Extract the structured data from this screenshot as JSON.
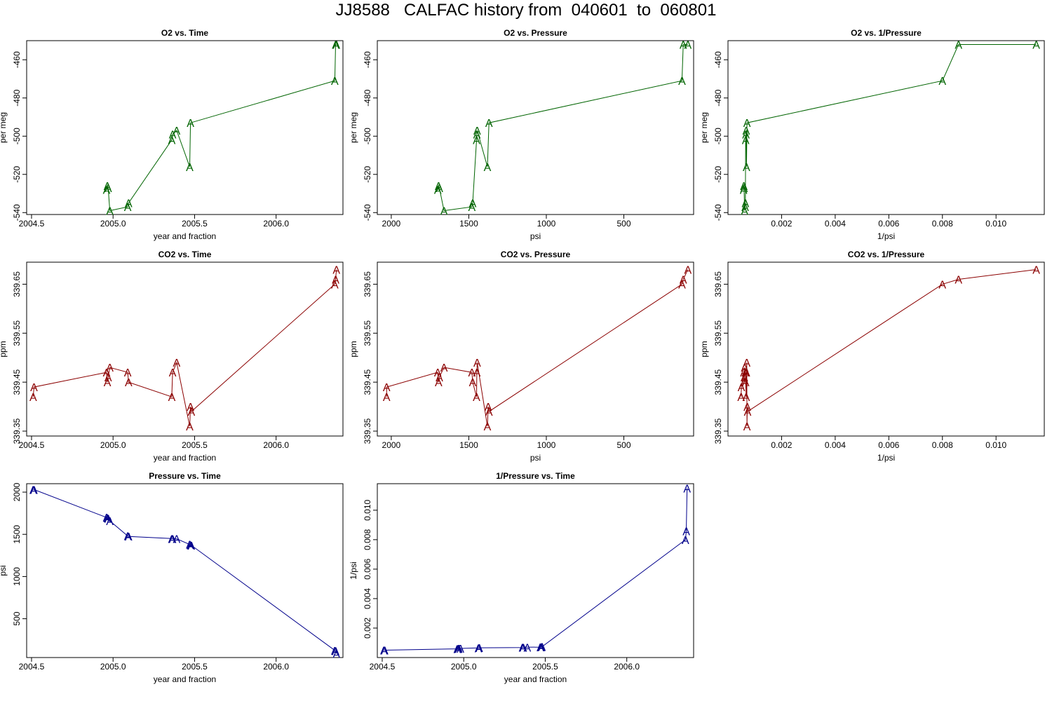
{
  "title": "JJ8588   CALFAC history from  040601  to  060801",
  "colors": {
    "o2": "#006400",
    "co2": "#8b0000",
    "pressure": "#00008b",
    "axis": "#000000"
  },
  "marker": "A",
  "chart_data": [
    {
      "id": "o2-vs-time",
      "type": "line",
      "title": "O2 vs. Time",
      "xlabel": "year and fraction",
      "ylabel": "per meg",
      "color": "o2",
      "xlim": [
        2004.47,
        2006.41
      ],
      "ylim": [
        -541,
        -450
      ],
      "xreverse": false,
      "xticks": [
        {
          "v": 2004.5,
          "t": "2004.5"
        },
        {
          "v": 2005.0,
          "t": "2005.0"
        },
        {
          "v": 2005.5,
          "t": "2005.5"
        },
        {
          "v": 2006.0,
          "t": "2006.0"
        }
      ],
      "yticks": [
        {
          "v": -460,
          "t": "-460"
        },
        {
          "v": -480,
          "t": "-480"
        },
        {
          "v": -500,
          "t": "-500"
        },
        {
          "v": -520,
          "t": "-520"
        },
        {
          "v": -540,
          "t": "-540"
        }
      ],
      "x": [
        2004.96,
        2004.965,
        2004.97,
        2004.98,
        2005.09,
        2005.095,
        2005.36,
        2005.365,
        2005.39,
        2005.47,
        2005.475,
        2006.36,
        2006.365,
        2006.37
      ],
      "y": [
        -528,
        -526,
        -527,
        -539,
        -537,
        -535,
        -502,
        -499,
        -497,
        -516,
        -493,
        -471,
        -452,
        -452
      ]
    },
    {
      "id": "o2-vs-pressure",
      "type": "line",
      "title": "O2 vs. Pressure",
      "xlabel": "psi",
      "ylabel": "per meg",
      "color": "o2",
      "xlim": [
        2090,
        50
      ],
      "ylim": [
        -541,
        -450
      ],
      "xreverse": true,
      "xticks": [
        {
          "v": 2000,
          "t": "2000"
        },
        {
          "v": 1500,
          "t": "1500"
        },
        {
          "v": 1000,
          "t": "1000"
        },
        {
          "v": 500,
          "t": "500"
        }
      ],
      "yticks": [
        {
          "v": -460,
          "t": "-460"
        },
        {
          "v": -480,
          "t": "-480"
        },
        {
          "v": -500,
          "t": "-500"
        },
        {
          "v": -520,
          "t": "-520"
        },
        {
          "v": -540,
          "t": "-540"
        }
      ],
      "x": [
        1700,
        1695,
        1690,
        1660,
        1480,
        1475,
        1450,
        1448,
        1446,
        1380,
        1370,
        125,
        117,
        87
      ],
      "y": [
        -528,
        -526,
        -527,
        -539,
        -537,
        -535,
        -502,
        -499,
        -497,
        -516,
        -493,
        -471,
        -452,
        -452
      ]
    },
    {
      "id": "o2-vs-inv-pressure",
      "type": "line",
      "title": "O2 vs. 1/Pressure",
      "xlabel": "1/psi",
      "ylabel": "per meg",
      "color": "o2",
      "xlim": [
        0,
        0.0118
      ],
      "ylim": [
        -541,
        -450
      ],
      "xreverse": false,
      "xticks": [
        {
          "v": 0.002,
          "t": "0.002"
        },
        {
          "v": 0.004,
          "t": "0.004"
        },
        {
          "v": 0.006,
          "t": "0.006"
        },
        {
          "v": 0.008,
          "t": "0.008"
        },
        {
          "v": 0.01,
          "t": "0.010"
        }
      ],
      "yticks": [
        {
          "v": -460,
          "t": "-460"
        },
        {
          "v": -480,
          "t": "-480"
        },
        {
          "v": -500,
          "t": "-500"
        },
        {
          "v": -520,
          "t": "-520"
        },
        {
          "v": -540,
          "t": "-540"
        }
      ],
      "x": [
        0.00058,
        0.00059,
        0.0006,
        0.00062,
        0.00064,
        0.00065,
        0.00066,
        0.00067,
        0.00068,
        0.00069,
        0.00071,
        0.008,
        0.0086,
        0.0115
      ],
      "y": [
        -528,
        -526,
        -527,
        -539,
        -537,
        -535,
        -502,
        -499,
        -497,
        -516,
        -493,
        -471,
        -452,
        -452
      ]
    },
    {
      "id": "co2-vs-time",
      "type": "line",
      "title": "CO2 vs. Time",
      "xlabel": "year and fraction",
      "ylabel": "ppm",
      "color": "co2",
      "xlim": [
        2004.47,
        2006.41
      ],
      "ylim": [
        339.34,
        339.695
      ],
      "xreverse": false,
      "xticks": [
        {
          "v": 2004.5,
          "t": "2004.5"
        },
        {
          "v": 2005.0,
          "t": "2005.0"
        },
        {
          "v": 2005.5,
          "t": "2005.5"
        },
        {
          "v": 2006.0,
          "t": "2006.0"
        }
      ],
      "yticks": [
        {
          "v": 339.35,
          "t": "339.35"
        },
        {
          "v": 339.45,
          "t": "339.45"
        },
        {
          "v": 339.55,
          "t": "339.55"
        },
        {
          "v": 339.65,
          "t": "339.65"
        }
      ],
      "x": [
        2004.51,
        2004.515,
        2004.96,
        2004.965,
        2004.97,
        2004.98,
        2005.09,
        2005.095,
        2005.36,
        2005.365,
        2005.39,
        2005.47,
        2005.475,
        2005.48,
        2006.36,
        2006.365,
        2006.37
      ],
      "y": [
        339.42,
        339.44,
        339.47,
        339.45,
        339.46,
        339.48,
        339.47,
        339.45,
        339.42,
        339.47,
        339.49,
        339.36,
        339.4,
        339.39,
        339.65,
        339.66,
        339.68
      ]
    },
    {
      "id": "co2-vs-pressure",
      "type": "line",
      "title": "CO2 vs. Pressure",
      "xlabel": "psi",
      "ylabel": "ppm",
      "color": "co2",
      "xlim": [
        2090,
        50
      ],
      "ylim": [
        339.34,
        339.695
      ],
      "xreverse": true,
      "xticks": [
        {
          "v": 2000,
          "t": "2000"
        },
        {
          "v": 1500,
          "t": "1500"
        },
        {
          "v": 1000,
          "t": "1000"
        },
        {
          "v": 500,
          "t": "500"
        }
      ],
      "yticks": [
        {
          "v": 339.35,
          "t": "339.35"
        },
        {
          "v": 339.45,
          "t": "339.45"
        },
        {
          "v": 339.55,
          "t": "339.55"
        },
        {
          "v": 339.65,
          "t": "339.65"
        }
      ],
      "x": [
        2030,
        2030,
        1700,
        1695,
        1690,
        1660,
        1480,
        1475,
        1450,
        1448,
        1446,
        1380,
        1375,
        1370,
        125,
        117,
        87
      ],
      "y": [
        339.42,
        339.44,
        339.47,
        339.45,
        339.46,
        339.48,
        339.47,
        339.45,
        339.42,
        339.47,
        339.49,
        339.36,
        339.4,
        339.39,
        339.65,
        339.66,
        339.68
      ]
    },
    {
      "id": "co2-vs-inv-pressure",
      "type": "line",
      "title": "CO2 vs. 1/Pressure",
      "xlabel": "1/psi",
      "ylabel": "ppm",
      "color": "co2",
      "xlim": [
        0,
        0.0118
      ],
      "ylim": [
        339.34,
        339.695
      ],
      "xreverse": false,
      "xticks": [
        {
          "v": 0.002,
          "t": "0.002"
        },
        {
          "v": 0.004,
          "t": "0.004"
        },
        {
          "v": 0.006,
          "t": "0.006"
        },
        {
          "v": 0.008,
          "t": "0.008"
        },
        {
          "v": 0.01,
          "t": "0.010"
        }
      ],
      "yticks": [
        {
          "v": 339.35,
          "t": "339.35"
        },
        {
          "v": 339.45,
          "t": "339.45"
        },
        {
          "v": 339.55,
          "t": "339.55"
        },
        {
          "v": 339.65,
          "t": "339.65"
        }
      ],
      "x": [
        0.00049,
        0.0005,
        0.00059,
        0.0006,
        0.00061,
        0.00062,
        0.00065,
        0.00066,
        0.00068,
        0.00069,
        0.0007,
        0.00071,
        0.00072,
        0.00073,
        0.008,
        0.0086,
        0.0115
      ],
      "y": [
        339.42,
        339.44,
        339.47,
        339.45,
        339.46,
        339.48,
        339.47,
        339.45,
        339.42,
        339.47,
        339.49,
        339.36,
        339.4,
        339.39,
        339.65,
        339.66,
        339.68
      ]
    },
    {
      "id": "pressure-vs-time",
      "type": "line",
      "title": "Pressure vs. Time",
      "xlabel": "year and fraction",
      "ylabel": "psi",
      "color": "pressure",
      "xlim": [
        2004.47,
        2006.41
      ],
      "ylim": [
        40,
        2100
      ],
      "xreverse": false,
      "xticks": [
        {
          "v": 2004.5,
          "t": "2004.5"
        },
        {
          "v": 2005.0,
          "t": "2005.0"
        },
        {
          "v": 2005.5,
          "t": "2005.5"
        },
        {
          "v": 2006.0,
          "t": "2006.0"
        }
      ],
      "yticks": [
        {
          "v": 500,
          "t": "500"
        },
        {
          "v": 1000,
          "t": "1000"
        },
        {
          "v": 1500,
          "t": "1500"
        },
        {
          "v": 2000,
          "t": "2000"
        }
      ],
      "x": [
        2004.51,
        2004.515,
        2004.96,
        2004.965,
        2004.97,
        2004.98,
        2005.09,
        2005.095,
        2005.36,
        2005.365,
        2005.39,
        2005.47,
        2005.475,
        2005.48,
        2006.36,
        2006.365,
        2006.37
      ],
      "y": [
        2030,
        2030,
        1700,
        1695,
        1690,
        1660,
        1480,
        1475,
        1450,
        1448,
        1446,
        1380,
        1375,
        1370,
        125,
        117,
        87
      ]
    },
    {
      "id": "inv-pressure-vs-time",
      "type": "line",
      "title": "1/Pressure vs. Time",
      "xlabel": "year and fraction",
      "ylabel": "1/psi",
      "color": "pressure",
      "xlim": [
        2004.47,
        2006.41
      ],
      "ylim": [
        0,
        0.0118
      ],
      "xreverse": false,
      "xticks": [
        {
          "v": 2004.5,
          "t": "2004.5"
        },
        {
          "v": 2005.0,
          "t": "2005.0"
        },
        {
          "v": 2005.5,
          "t": "2005.5"
        },
        {
          "v": 2006.0,
          "t": "2006.0"
        }
      ],
      "yticks": [
        {
          "v": 0.002,
          "t": "0.002"
        },
        {
          "v": 0.004,
          "t": "0.004"
        },
        {
          "v": 0.006,
          "t": "0.006"
        },
        {
          "v": 0.008,
          "t": "0.008"
        },
        {
          "v": 0.01,
          "t": "0.010"
        }
      ],
      "x": [
        2004.51,
        2004.515,
        2004.96,
        2004.965,
        2004.97,
        2004.98,
        2005.09,
        2005.095,
        2005.36,
        2005.365,
        2005.39,
        2005.47,
        2005.475,
        2005.48,
        2006.36,
        2006.365,
        2006.37
      ],
      "y": [
        0.00049,
        0.0005,
        0.00059,
        0.0006,
        0.00061,
        0.00062,
        0.00065,
        0.00066,
        0.00068,
        0.00069,
        0.0007,
        0.00071,
        0.00072,
        0.00073,
        0.008,
        0.0086,
        0.0115
      ]
    }
  ]
}
